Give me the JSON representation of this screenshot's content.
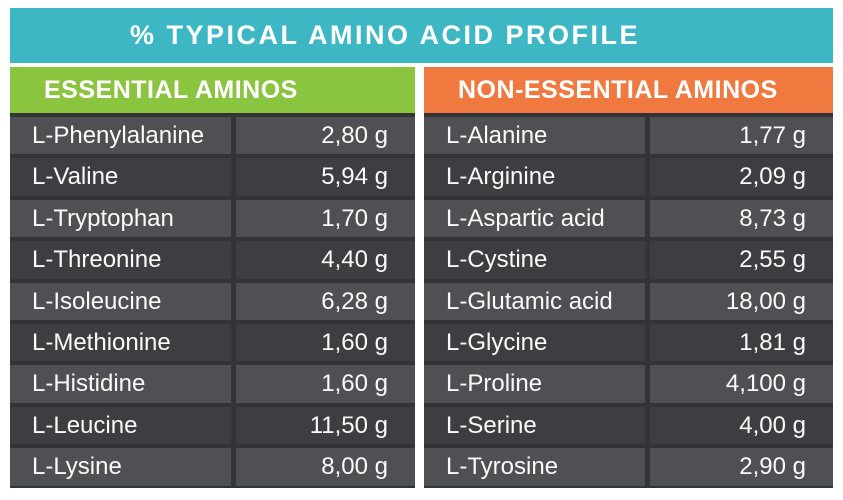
{
  "title": "% TYPICAL AMINO ACID PROFILE",
  "colors": {
    "teal": "#3db7c4",
    "green": "#8bc43f",
    "orange": "#f0793f",
    "table_bg": "#333437",
    "row_light": "#4f5054",
    "row_dark": "#3d3e41",
    "text": "#ffffff"
  },
  "chart_data": [
    {
      "type": "table",
      "header": "ESSENTIAL AMINOS",
      "columns": [
        "Amino acid",
        "Amount"
      ],
      "rows": [
        {
          "name": "L-Phenylalanine",
          "value": "2,80 g"
        },
        {
          "name": "L-Valine",
          "value": "5,94 g"
        },
        {
          "name": "L-Tryptophan",
          "value": "1,70 g"
        },
        {
          "name": "L-Threonine",
          "value": "4,40 g"
        },
        {
          "name": "L-Isoleucine",
          "value": "6,28 g"
        },
        {
          "name": "L-Methionine",
          "value": "1,60 g"
        },
        {
          "name": "L-Histidine",
          "value": "1,60 g"
        },
        {
          "name": "L-Leucine",
          "value": "11,50 g"
        },
        {
          "name": "L-Lysine",
          "value": "8,00 g"
        }
      ]
    },
    {
      "type": "table",
      "header": "NON-ESSENTIAL AMINOS",
      "columns": [
        "Amino acid",
        "Amount"
      ],
      "rows": [
        {
          "name": "L-Alanine",
          "value": "1,77 g"
        },
        {
          "name": "L-Arginine",
          "value": "2,09 g"
        },
        {
          "name": "L-Aspartic acid",
          "value": "8,73 g"
        },
        {
          "name": "L-Cystine",
          "value": "2,55 g"
        },
        {
          "name": "L-Glutamic acid",
          "value": "18,00 g"
        },
        {
          "name": "L-Glycine",
          "value": "1,81 g"
        },
        {
          "name": "L-Proline",
          "value": "4,100 g"
        },
        {
          "name": "L-Serine",
          "value": "4,00 g"
        },
        {
          "name": "L-Tyrosine",
          "value": "2,90 g"
        }
      ]
    }
  ]
}
